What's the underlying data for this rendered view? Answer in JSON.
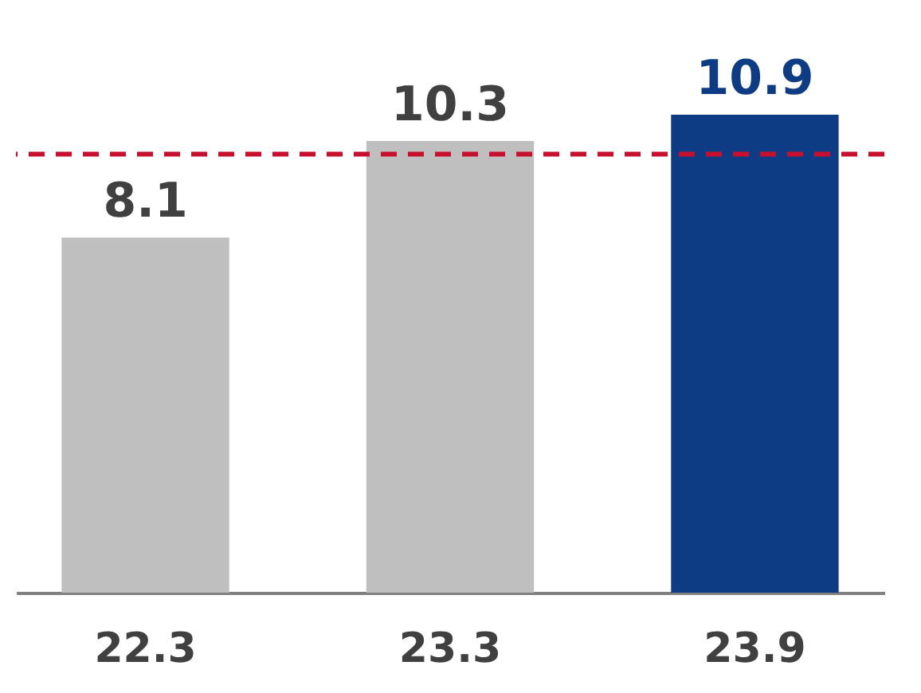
{
  "chart_data": {
    "type": "bar",
    "categories": [
      "22.3",
      "23.3",
      "23.9"
    ],
    "values": [
      8.1,
      10.3,
      10.9
    ],
    "colors": [
      "#bfbfbf",
      "#bfbfbf",
      "#0d3c85"
    ],
    "data_labels": true,
    "ref_lines": [
      {
        "axis": "y",
        "value": 10,
        "color": "#c8102e",
        "line_style": "dashed"
      }
    ]
  }
}
